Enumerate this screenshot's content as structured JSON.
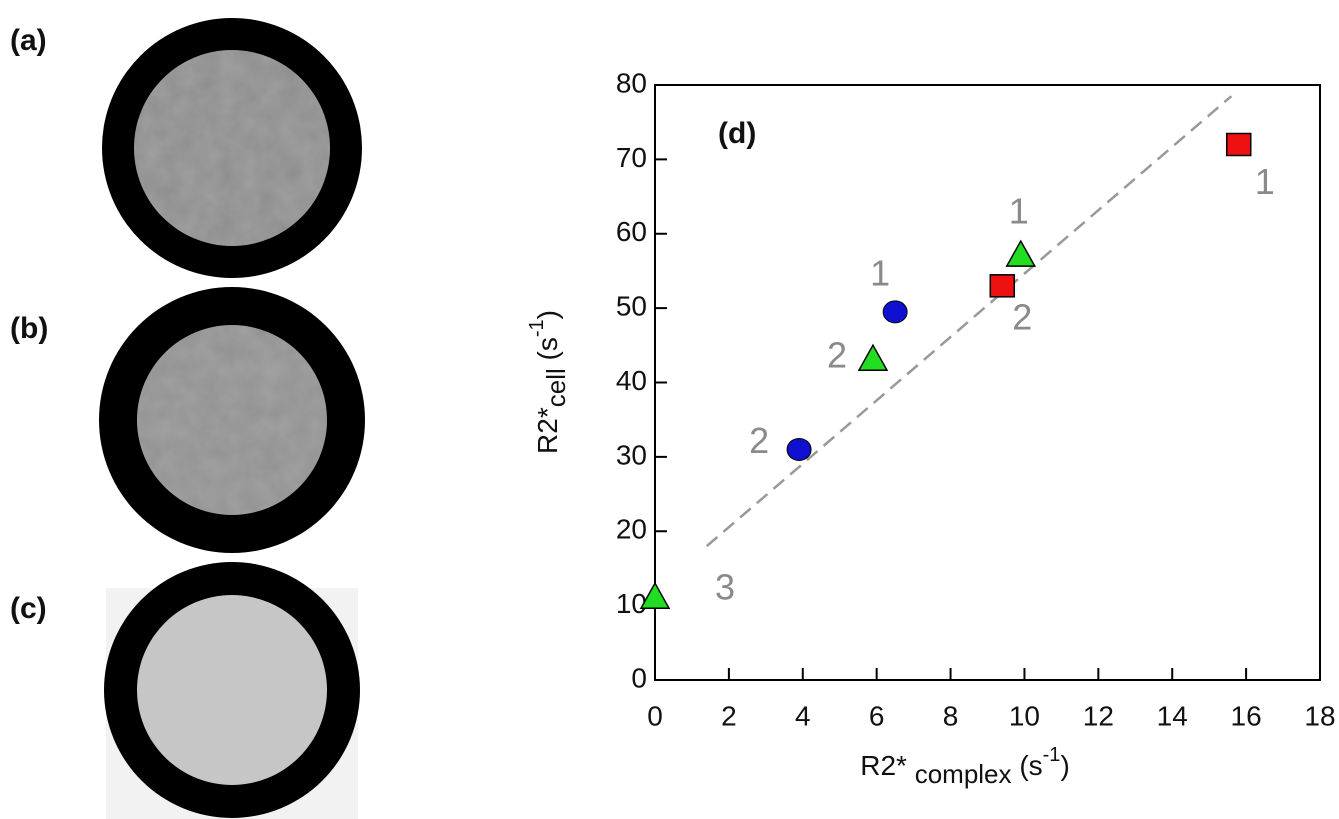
{
  "panels": [
    "(a)",
    "(b)",
    "(c)"
  ],
  "chart_data": {
    "type": "scatter",
    "annotation": "(d)",
    "x_label": [
      "R2*",
      "complex",
      "(s",
      "-1",
      ")"
    ],
    "y_label": [
      "R2*",
      "cell",
      "(s",
      "-1",
      ")"
    ],
    "xlim": [
      0,
      18
    ],
    "ylim": [
      0,
      80
    ],
    "xticks": [
      0,
      2,
      4,
      6,
      8,
      10,
      12,
      14,
      16,
      18
    ],
    "yticks": [
      0,
      10,
      20,
      30,
      40,
      50,
      60,
      70,
      80
    ],
    "series": [
      {
        "color": "#1010d0",
        "marker": "circle",
        "x": [
          6.5,
          3.9
        ],
        "values": [
          49.5,
          31
        ],
        "labels": [
          "1",
          "2"
        ]
      },
      {
        "color": "#22dd22",
        "marker": "triangle",
        "x": [
          9.9,
          5.9,
          0
        ],
        "values": [
          57,
          43,
          11
        ],
        "labels": [
          "1",
          "2",
          "3"
        ]
      },
      {
        "color": "#ee1111",
        "marker": "square",
        "x": [
          15.8,
          9.4
        ],
        "values": [
          72,
          53
        ],
        "labels": [
          "1",
          "2"
        ]
      }
    ],
    "trend_line": {
      "x": [
        1.4,
        15.6
      ],
      "values": [
        18,
        78.5
      ],
      "color": "#999999",
      "dashed": true
    }
  }
}
